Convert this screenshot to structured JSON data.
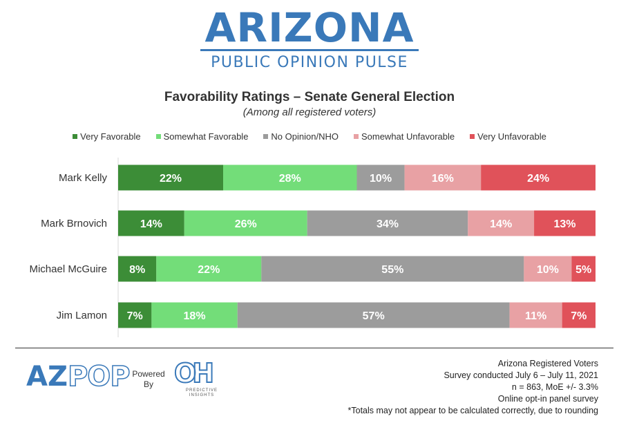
{
  "header": {
    "title": "ARIZONA",
    "subtitle": "PUBLIC OPINION PULSE",
    "color": "#3a79b9"
  },
  "chart_data": {
    "type": "bar",
    "orientation": "horizontal-stacked-100",
    "title": "Favorability Ratings  – Senate General Election",
    "subtitle": "(Among all registered voters)",
    "legend_position": "top",
    "xlim": [
      0,
      100
    ],
    "grid": false,
    "categories": [
      "Mark Kelly",
      "Mark Brnovich",
      "Michael McGuire",
      "Jim Lamon"
    ],
    "series": [
      {
        "name": "Very Favorable",
        "color": "#3c8d37",
        "values": [
          22,
          14,
          8,
          7
        ]
      },
      {
        "name": "Somewhat Favorable",
        "color": "#73dd79",
        "values": [
          28,
          26,
          22,
          18
        ]
      },
      {
        "name": "No Opinion/NHO",
        "color": "#9c9c9c",
        "values": [
          10,
          34,
          55,
          57
        ]
      },
      {
        "name": "Somewhat Unfavorable",
        "color": "#e8a1a4",
        "values": [
          16,
          14,
          10,
          11
        ]
      },
      {
        "name": "Very Unfavorable",
        "color": "#e0525a",
        "values": [
          24,
          13,
          5,
          7
        ]
      }
    ]
  },
  "footer": {
    "logo_left_solid": "AZ",
    "logo_left_outline": "POP",
    "powered_line1": "Powered",
    "powered_line2": "By",
    "partner_mark": "OH",
    "partner_caption_1": "PREDICTIVE",
    "partner_caption_2": "INSIGHTS",
    "notes": [
      "Arizona Registered Voters",
      "Survey conducted July 6 – July 11, 2021",
      "n = 863, MoE +/- 3.3%",
      "Online opt-in panel survey",
      "*Totals may not appear to be calculated correctly, due to rounding"
    ]
  }
}
